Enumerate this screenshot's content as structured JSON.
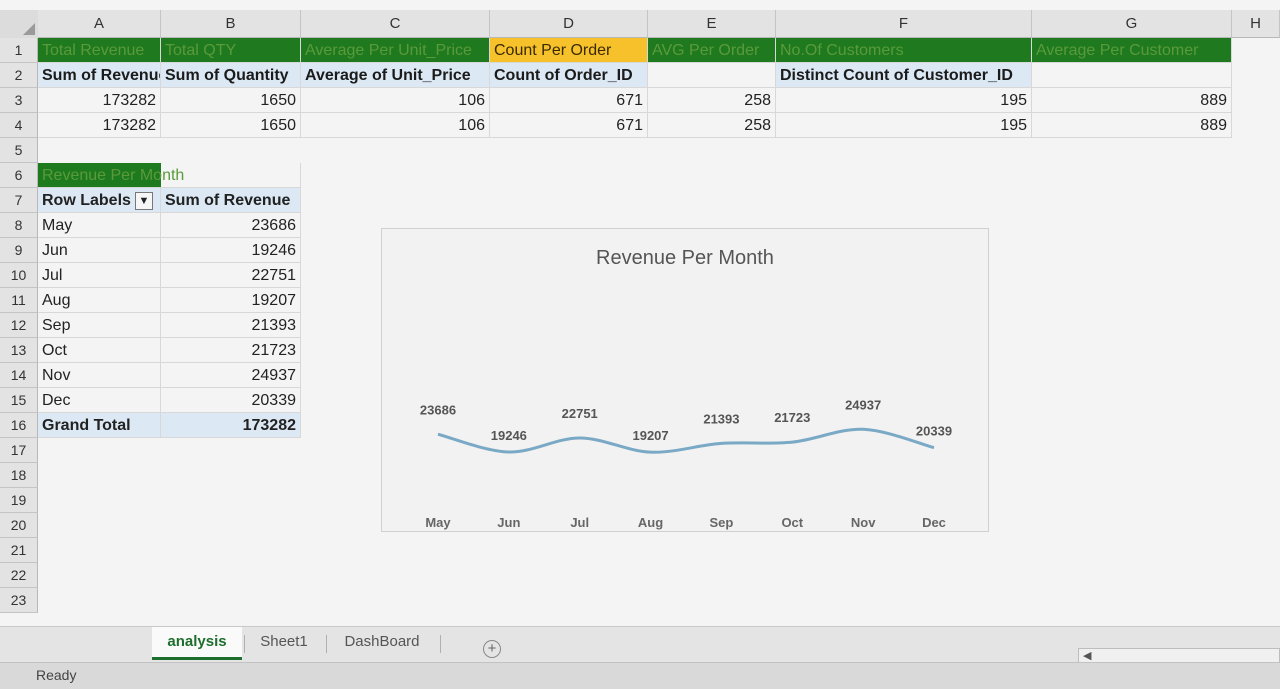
{
  "columns": [
    "A",
    "B",
    "C",
    "D",
    "E",
    "F",
    "G",
    "H"
  ],
  "rows": [
    "1",
    "2",
    "3",
    "4",
    "5",
    "6",
    "7",
    "8",
    "9",
    "10",
    "11",
    "12",
    "13",
    "14",
    "15",
    "16",
    "17",
    "18",
    "19",
    "20",
    "21",
    "22",
    "23"
  ],
  "row1": {
    "a": "Total Revenue",
    "b": "Total QTY",
    "c": "Average Per Unit_Price",
    "d": "Count Per Order",
    "e": "AVG Per Order",
    "f": "No.Of Customers",
    "g": "Average Per Customer"
  },
  "row2": {
    "a": "Sum of Revenue",
    "b": "Sum of Quantity",
    "c": "Average of Unit_Price",
    "d": "Count of Order_ID",
    "f": "Distinct Count of Customer_ID"
  },
  "row3": {
    "a": "173282",
    "b": "1650",
    "c": "106",
    "d": "671",
    "e": "258",
    "f": "195",
    "g": "889"
  },
  "row4": {
    "a": "173282",
    "b": "1650",
    "c": "106",
    "d": "671",
    "e": "258",
    "f": "195",
    "g": "889"
  },
  "pivot": {
    "title": "Revenue Per Month",
    "row_labels": "Row Labels",
    "sum_header": "Sum of Revenue",
    "months": [
      "May",
      "Jun",
      "Jul",
      "Aug",
      "Sep",
      "Oct",
      "Nov",
      "Dec"
    ],
    "values": [
      "23686",
      "19246",
      "22751",
      "19207",
      "21393",
      "21723",
      "24937",
      "20339"
    ],
    "grand_label": "Grand Total",
    "grand_value": "173282"
  },
  "chart_data": {
    "type": "line",
    "title": "Revenue Per Month",
    "categories": [
      "May",
      "Jun",
      "Jul",
      "Aug",
      "Sep",
      "Oct",
      "Nov",
      "Dec"
    ],
    "values": [
      23686,
      19246,
      22751,
      19207,
      21393,
      21723,
      24937,
      20339
    ],
    "ylim": [
      0,
      60000
    ],
    "line_color": "#7aa9c6",
    "grid": false,
    "legend": "none"
  },
  "tabs": [
    "analysis",
    "Sheet1",
    "DashBoard"
  ],
  "active_tab": "analysis",
  "status": "Ready"
}
